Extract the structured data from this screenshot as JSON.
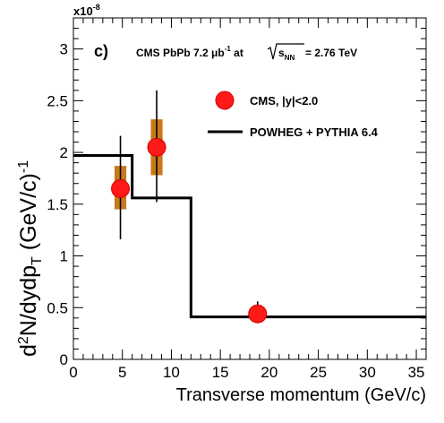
{
  "chart_data": {
    "type": "scatter",
    "panel_label": "c)",
    "header": {
      "part1": "CMS PbPb 7.2 ",
      "unit": "μb",
      "unit_exp": "-1",
      "at": " at ",
      "sqrt_s": "s",
      "sqrt_sub": "NN",
      "energy": " = 2.76 TeV"
    },
    "exponent_label": "x10",
    "exponent_power": "-8",
    "xlabel": "Transverse momentum (GeV/c)",
    "ylabel": {
      "d2": "d",
      "sup2": "2",
      "body": "N/dydp",
      "subT": "T",
      "unit": " (GeV/c)",
      "supunit": "-1"
    },
    "xlim": [
      0,
      36
    ],
    "ylim": [
      0,
      3.3
    ],
    "x_ticks": [
      0,
      5,
      10,
      15,
      20,
      25,
      30,
      35
    ],
    "y_ticks": [
      0,
      0.5,
      1,
      1.5,
      2,
      2.5,
      3
    ],
    "y_tick_labels": [
      "0",
      "0.5",
      "1",
      "1.5",
      "2",
      "2.5",
      "3"
    ],
    "series": [
      {
        "name": "CMS, |y|<2.0",
        "x": [
          4.8,
          8.5,
          18.8
        ],
        "y": [
          1.65,
          2.05,
          0.44
        ],
        "stat_low": [
          1.16,
          1.52,
          0.36
        ],
        "stat_high": [
          2.16,
          2.6,
          0.56
        ],
        "sys_low": [
          1.45,
          1.78,
          0.41
        ],
        "sys_high": [
          1.87,
          2.32,
          0.47
        ],
        "sys_halfwidth": [
          0.6,
          0.6,
          0.0
        ],
        "color": "#ff1a1a",
        "sys_color": "#c8791a"
      },
      {
        "name": "POWHEG + PYTHIA 6.4",
        "type": "step",
        "edges": [
          0,
          6,
          12,
          36
        ],
        "values": [
          1.97,
          1.56,
          0.41
        ],
        "color": "#000000"
      }
    ],
    "legend": "top-right"
  }
}
